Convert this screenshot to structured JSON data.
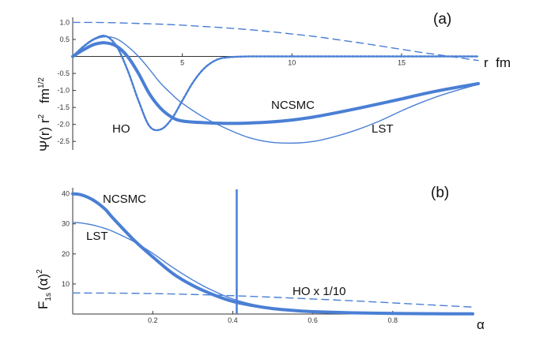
{
  "chart_data": [
    {
      "type": "line",
      "panel": "(a)",
      "xlabel": "r  fm",
      "ylabel_lines": [
        "Ψ(r) r",
        "2",
        "fm",
        "1/2"
      ],
      "xlim": [
        0,
        18.5
      ],
      "ylim": [
        -2.75,
        1.15
      ],
      "x_ticks": [
        5,
        10,
        15
      ],
      "y_ticks": [
        1.0,
        0.5,
        -0.5,
        -1.0,
        -1.5,
        -2.0,
        -2.5
      ],
      "series": [
        {
          "name": "NCSMC",
          "style": "thick",
          "x": [
            0,
            0.5,
            1.0,
            1.5,
            2.0,
            2.5,
            3.0,
            3.5,
            4.0,
            4.5,
            5.0,
            6.0,
            7.0,
            8.0,
            9.0,
            10.0,
            11.0,
            12.0,
            13.0,
            14.0,
            15.0,
            16.0,
            17.0,
            18.5
          ],
          "y": [
            0,
            0.2,
            0.36,
            0.4,
            0.3,
            0.0,
            -0.5,
            -1.1,
            -1.52,
            -1.78,
            -1.9,
            -1.95,
            -1.97,
            -1.96,
            -1.93,
            -1.87,
            -1.78,
            -1.66,
            -1.53,
            -1.39,
            -1.25,
            -1.1,
            -0.97,
            -0.8
          ]
        },
        {
          "name": "LST",
          "style": "thin",
          "x": [
            0,
            0.5,
            1.0,
            1.5,
            2.0,
            2.5,
            3.0,
            3.5,
            4.0,
            4.5,
            5.0,
            6.0,
            7.0,
            8.0,
            9.0,
            10.0,
            11.0,
            12.0,
            13.0,
            14.0,
            15.0,
            16.0,
            17.0,
            18.5
          ],
          "y": [
            0,
            0.28,
            0.5,
            0.58,
            0.52,
            0.3,
            0.0,
            -0.38,
            -0.78,
            -1.1,
            -1.38,
            -1.8,
            -2.12,
            -2.38,
            -2.52,
            -2.55,
            -2.5,
            -2.35,
            -2.15,
            -1.9,
            -1.6,
            -1.33,
            -1.1,
            -0.82
          ]
        },
        {
          "name": "HO",
          "style": "dotted",
          "x": [
            0,
            0.5,
            1.0,
            1.5,
            2.0,
            2.5,
            3.0,
            3.5,
            4.0,
            4.5,
            5.0,
            5.5,
            6.0,
            6.5,
            7.0,
            8.0,
            9.0,
            10.0,
            18.5
          ],
          "y": [
            0,
            0.3,
            0.52,
            0.6,
            0.3,
            -0.4,
            -1.3,
            -2.05,
            -2.15,
            -1.85,
            -1.3,
            -0.75,
            -0.35,
            -0.12,
            -0.03,
            0,
            0,
            0,
            0
          ]
        },
        {
          "name": "",
          "style": "dashed",
          "x": [
            0,
            1,
            2,
            3,
            4,
            5,
            6,
            7,
            8,
            9,
            10,
            11,
            12,
            13,
            14,
            15,
            16,
            17,
            18.5
          ],
          "y": [
            1.0,
            1.0,
            0.99,
            0.97,
            0.95,
            0.92,
            0.88,
            0.84,
            0.79,
            0.73,
            0.66,
            0.59,
            0.5,
            0.41,
            0.31,
            0.21,
            0.11,
            0.02,
            -0.12
          ]
        }
      ],
      "annotations": [
        "NCSMC",
        "HO",
        "LST"
      ]
    },
    {
      "type": "line",
      "panel": "(b)",
      "xlabel": "α",
      "ylabel_main": "F",
      "ylabel_sub": "1s",
      "ylabel_rest": "(α)",
      "ylabel_sup": "2",
      "xlim": [
        0,
        1.0
      ],
      "ylim": [
        0,
        42
      ],
      "x_ticks": [
        0.2,
        0.4,
        0.6,
        0.8
      ],
      "y_ticks": [
        10,
        20,
        30,
        40
      ],
      "vline_x": 0.41,
      "series": [
        {
          "name": "NCSMC",
          "style": "thick",
          "x": [
            0,
            0.02,
            0.05,
            0.08,
            0.1,
            0.15,
            0.2,
            0.25,
            0.3,
            0.35,
            0.4,
            0.45,
            0.5,
            0.55,
            0.6,
            0.7,
            0.8,
            0.9,
            1.0
          ],
          "y": [
            40,
            39.7,
            38,
            35,
            32,
            25,
            19,
            13.5,
            9.5,
            6.5,
            4.2,
            2.8,
            1.8,
            1.2,
            0.8,
            0.4,
            0.2,
            0.1,
            0.05
          ]
        },
        {
          "name": "LST",
          "style": "thin",
          "x": [
            0,
            0.02,
            0.05,
            0.08,
            0.1,
            0.15,
            0.2,
            0.25,
            0.3,
            0.35,
            0.4,
            0.45,
            0.5,
            0.55,
            0.6,
            0.7,
            0.8,
            0.9,
            1.0
          ],
          "y": [
            30.5,
            30.3,
            29.6,
            28.5,
            27.5,
            24.3,
            20.2,
            15.5,
            11.3,
            7.8,
            5.0,
            3.2,
            2.0,
            1.2,
            0.7,
            0.3,
            0.15,
            0.08,
            0.04
          ]
        },
        {
          "name": "HO x 1/10",
          "style": "dashed",
          "x": [
            0,
            0.1,
            0.2,
            0.3,
            0.4,
            0.5,
            0.6,
            0.7,
            0.8,
            0.9,
            1.0
          ],
          "y": [
            7.0,
            6.95,
            6.8,
            6.5,
            6.1,
            5.6,
            5.0,
            4.4,
            3.7,
            3.0,
            2.3
          ]
        }
      ],
      "annotations": [
        "NCSMC",
        "LST",
        "HO x 1/10"
      ]
    }
  ],
  "colors": {
    "curve": "#4a7fd4",
    "axis": "#333333"
  }
}
